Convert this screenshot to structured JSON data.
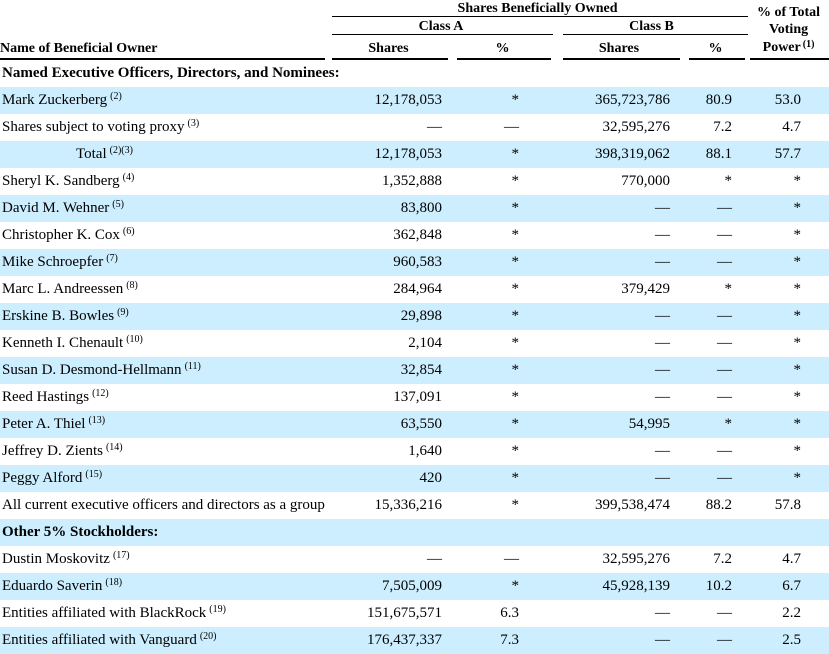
{
  "table": {
    "colors": {
      "shaded_row": "#CCEEFF",
      "border": "#000000",
      "bottom_bar": "#000000"
    },
    "headers": {
      "name": "Name of Beneficial Owner",
      "group_title": "Shares Beneficially Owned",
      "class_a": "Class A",
      "class_b": "Class B",
      "shares_a": "Shares",
      "pct_a": "%",
      "shares_b": "Shares",
      "pct_b": "%",
      "voting_power_lines": [
        "% of Total",
        "Voting",
        "Power"
      ],
      "voting_power_sup": "(1)"
    },
    "rows": [
      {
        "type": "section",
        "label": "Named Executive Officers, Directors, and Nominees:",
        "shaded": false
      },
      {
        "type": "data",
        "name": "Mark Zuckerberg",
        "sup": "(2)",
        "indent": false,
        "shaded": true,
        "a_shares": "12,178,053",
        "a_pct": "*",
        "b_shares": "365,723,786",
        "b_pct": "80.9",
        "voting": "53.0"
      },
      {
        "type": "data",
        "name": "Shares subject to voting proxy",
        "sup": "(3)",
        "indent": false,
        "shaded": false,
        "a_shares": "—",
        "a_pct": "—",
        "b_shares": "32,595,276",
        "b_pct": "7.2",
        "voting": "4.7"
      },
      {
        "type": "data",
        "name": "Total",
        "sup": "(2)(3)",
        "indent": true,
        "shaded": true,
        "a_shares": "12,178,053",
        "a_pct": "*",
        "b_shares": "398,319,062",
        "b_pct": "88.1",
        "voting": "57.7"
      },
      {
        "type": "data",
        "name": "Sheryl K. Sandberg",
        "sup": "(4)",
        "indent": false,
        "shaded": false,
        "a_shares": "1,352,888",
        "a_pct": "*",
        "b_shares": "770,000",
        "b_pct": "*",
        "voting": "*"
      },
      {
        "type": "data",
        "name": "David M. Wehner",
        "sup": "(5)",
        "indent": false,
        "shaded": true,
        "a_shares": "83,800",
        "a_pct": "*",
        "b_shares": "—",
        "b_pct": "—",
        "voting": "*"
      },
      {
        "type": "data",
        "name": "Christopher K. Cox",
        "sup": "(6)",
        "indent": false,
        "shaded": false,
        "a_shares": "362,848",
        "a_pct": "*",
        "b_shares": "—",
        "b_pct": "—",
        "voting": "*"
      },
      {
        "type": "data",
        "name": "Mike Schroepfer",
        "sup": "(7)",
        "indent": false,
        "shaded": true,
        "a_shares": "960,583",
        "a_pct": "*",
        "b_shares": "—",
        "b_pct": "—",
        "voting": "*"
      },
      {
        "type": "data",
        "name": "Marc L. Andreessen",
        "sup": "(8)",
        "indent": false,
        "shaded": false,
        "a_shares": "284,964",
        "a_pct": "*",
        "b_shares": "379,429",
        "b_pct": "*",
        "voting": "*"
      },
      {
        "type": "data",
        "name": "Erskine B. Bowles",
        "sup": "(9)",
        "indent": false,
        "shaded": true,
        "a_shares": "29,898",
        "a_pct": "*",
        "b_shares": "—",
        "b_pct": "—",
        "voting": "*"
      },
      {
        "type": "data",
        "name": "Kenneth I. Chenault",
        "sup": "(10)",
        "indent": false,
        "shaded": false,
        "a_shares": "2,104",
        "a_pct": "*",
        "b_shares": "—",
        "b_pct": "—",
        "voting": "*"
      },
      {
        "type": "data",
        "name": "Susan D. Desmond-Hellmann",
        "sup": "(11)",
        "indent": false,
        "shaded": true,
        "a_shares": "32,854",
        "a_pct": "*",
        "b_shares": "—",
        "b_pct": "—",
        "voting": "*"
      },
      {
        "type": "data",
        "name": "Reed Hastings",
        "sup": "(12)",
        "indent": false,
        "shaded": false,
        "a_shares": "137,091",
        "a_pct": "*",
        "b_shares": "—",
        "b_pct": "—",
        "voting": "*"
      },
      {
        "type": "data",
        "name": "Peter A. Thiel",
        "sup": "(13)",
        "indent": false,
        "shaded": true,
        "a_shares": "63,550",
        "a_pct": "*",
        "b_shares": "54,995",
        "b_pct": "*",
        "voting": "*"
      },
      {
        "type": "data",
        "name": "Jeffrey D. Zients",
        "sup": "(14)",
        "indent": false,
        "shaded": false,
        "a_shares": "1,640",
        "a_pct": "*",
        "b_shares": "—",
        "b_pct": "—",
        "voting": "*"
      },
      {
        "type": "data",
        "name": "Peggy Alford",
        "sup": "(15)",
        "indent": false,
        "shaded": true,
        "a_shares": "420",
        "a_pct": "*",
        "b_shares": "—",
        "b_pct": "—",
        "voting": "*"
      },
      {
        "type": "data",
        "name": "All current executive officers and directors as a group",
        "sup": "",
        "indent": false,
        "shaded": false,
        "a_shares": "15,336,216",
        "a_pct": "*",
        "b_shares": "399,538,474",
        "b_pct": "88.2",
        "voting": "57.8"
      },
      {
        "type": "section",
        "label": "Other 5% Stockholders:",
        "shaded": true
      },
      {
        "type": "data",
        "name": "Dustin Moskovitz",
        "sup": "(17)",
        "indent": false,
        "shaded": false,
        "a_shares": "—",
        "a_pct": "—",
        "b_shares": "32,595,276",
        "b_pct": "7.2",
        "voting": "4.7"
      },
      {
        "type": "data",
        "name": "Eduardo Saverin",
        "sup": "(18)",
        "indent": false,
        "shaded": true,
        "a_shares": "7,505,009",
        "a_pct": "*",
        "b_shares": "45,928,139",
        "b_pct": "10.2",
        "voting": "6.7"
      },
      {
        "type": "data",
        "name": "Entities affiliated with BlackRock",
        "sup": "(19)",
        "indent": false,
        "shaded": false,
        "a_shares": "151,675,571",
        "a_pct": "6.3",
        "b_shares": "—",
        "b_pct": "—",
        "voting": "2.2"
      },
      {
        "type": "data",
        "name": "Entities affiliated with Vanguard",
        "sup": "(20)",
        "indent": false,
        "shaded": true,
        "a_shares": "176,437,337",
        "a_pct": "7.3",
        "b_shares": "—",
        "b_pct": "—",
        "voting": "2.5"
      }
    ]
  }
}
